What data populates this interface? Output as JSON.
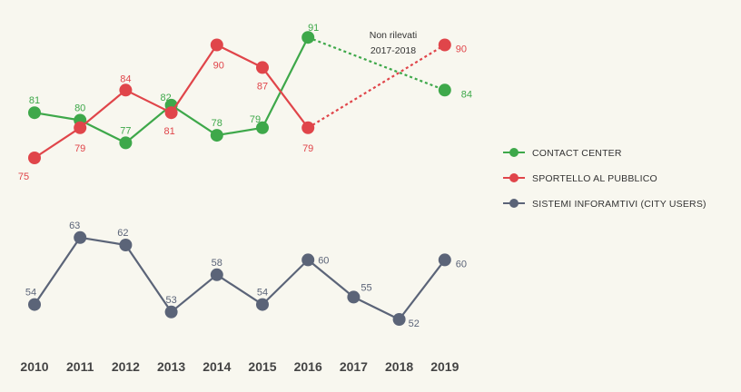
{
  "chart_data": {
    "type": "line",
    "title": "",
    "xlabel": "",
    "ylabel": "",
    "x": [
      "2010",
      "2011",
      "2012",
      "2013",
      "2014",
      "2015",
      "2016",
      "2017",
      "2018",
      "2019"
    ],
    "grid": false,
    "legend_position": "right",
    "annotation": [
      "Non rilevati",
      "2017-2018"
    ],
    "series": [
      {
        "name": "CONTACT CENTER",
        "color": "#3ea84a",
        "values": [
          81,
          80,
          77,
          82,
          78,
          79,
          91,
          null,
          null,
          84
        ],
        "labels": [
          "81",
          "80",
          "77",
          "82",
          "78",
          "79",
          "91",
          "",
          "",
          "84"
        ]
      },
      {
        "name": "SPORTELLO AL PUBBLICO",
        "color": "#e0454a",
        "values": [
          75,
          79,
          84,
          81,
          90,
          87,
          79,
          null,
          null,
          90
        ],
        "labels": [
          "75",
          "79",
          "84",
          "81",
          "90",
          "87",
          "79",
          "",
          "",
          "90"
        ]
      },
      {
        "name": "SISTEMI INFORAMTIVI (CITY USERS)",
        "color": "#5b6478",
        "values": [
          54,
          63,
          62,
          53,
          58,
          54,
          60,
          55,
          52,
          60
        ],
        "labels": [
          "54",
          "63",
          "62",
          "53",
          "58",
          "54",
          "60",
          "55",
          "52",
          "60"
        ]
      }
    ]
  }
}
